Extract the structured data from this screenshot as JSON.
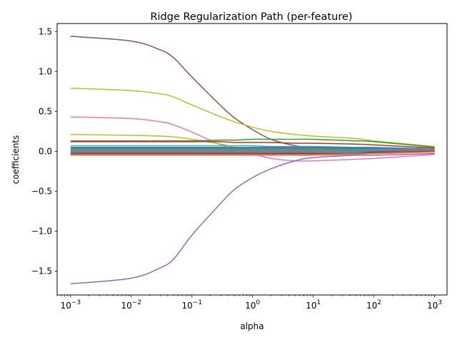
{
  "chart_data": {
    "type": "line",
    "title": "Ridge Regularization Path (per-feature)",
    "xlabel": "alpha",
    "ylabel": "coefficients",
    "xscale": "log",
    "xlim": [
      0.0006,
      1600
    ],
    "ylim": [
      -1.8,
      1.6
    ],
    "x_ticks": [
      {
        "value": 0.001,
        "base": "10",
        "exp": "−3"
      },
      {
        "value": 0.01,
        "base": "10",
        "exp": "−2"
      },
      {
        "value": 0.1,
        "base": "10",
        "exp": "−1"
      },
      {
        "value": 1,
        "base": "10",
        "exp": "0"
      },
      {
        "value": 10,
        "base": "10",
        "exp": "1"
      },
      {
        "value": 100,
        "base": "10",
        "exp": "2"
      },
      {
        "value": 1000,
        "base": "10",
        "exp": "3"
      }
    ],
    "y_ticks": [
      {
        "value": 1.5,
        "label": "1.5"
      },
      {
        "value": 1.0,
        "label": "1.0"
      },
      {
        "value": 0.5,
        "label": "0.5"
      },
      {
        "value": 0.0,
        "label": "0.0"
      },
      {
        "value": -0.5,
        "label": "−0.5"
      },
      {
        "value": -1.0,
        "label": "−1.0"
      },
      {
        "value": -1.5,
        "label": "−1.5"
      }
    ],
    "grid": false,
    "legend": "none",
    "x": [
      0.001,
      0.01,
      0.03,
      0.05,
      0.1,
      0.3,
      0.5,
      1,
      2,
      5,
      10,
      50,
      100,
      1000
    ],
    "series": [
      {
        "color": "#8c564b",
        "values": [
          1.44,
          1.38,
          1.27,
          1.17,
          0.93,
          0.57,
          0.42,
          0.27,
          0.15,
          0.07,
          0.05,
          0.04,
          0.04,
          0.03
        ]
      },
      {
        "color": "#bcbd22",
        "values": [
          0.79,
          0.76,
          0.72,
          0.68,
          0.58,
          0.43,
          0.37,
          0.3,
          0.25,
          0.21,
          0.19,
          0.16,
          0.13,
          0.06
        ]
      },
      {
        "color": "#e377c2",
        "values": [
          0.43,
          0.41,
          0.37,
          0.33,
          0.24,
          0.08,
          0.03,
          -0.03,
          -0.09,
          -0.12,
          -0.12,
          -0.1,
          -0.09,
          -0.04
        ]
      },
      {
        "color": "#bcbd22",
        "values": [
          0.21,
          0.2,
          0.19,
          0.18,
          0.15,
          0.09,
          0.05,
          0.01,
          -0.01,
          -0.02,
          -0.02,
          -0.02,
          -0.01,
          0.0
        ]
      },
      {
        "color": "#2ca02c",
        "values": [
          0.13,
          0.13,
          0.13,
          0.13,
          0.13,
          0.14,
          0.14,
          0.15,
          0.15,
          0.15,
          0.15,
          0.13,
          0.12,
          0.05
        ]
      },
      {
        "color": "#d62728",
        "values": [
          0.12,
          0.12,
          0.12,
          0.12,
          0.12,
          0.12,
          0.11,
          0.11,
          0.11,
          0.1,
          0.1,
          0.09,
          0.08,
          0.04
        ]
      },
      {
        "color": "#17becf",
        "values": [
          0.07,
          0.07,
          0.07,
          0.07,
          0.07,
          0.07,
          0.07,
          0.07,
          0.06,
          0.06,
          0.06,
          0.05,
          0.05,
          0.03
        ]
      },
      {
        "color": "#1f77b4",
        "values": [
          0.05,
          0.05,
          0.05,
          0.05,
          0.05,
          0.05,
          0.05,
          0.05,
          0.05,
          0.05,
          0.05,
          0.04,
          0.04,
          0.02
        ]
      },
      {
        "color": "#9467bd",
        "values": [
          0.04,
          0.04,
          0.04,
          0.04,
          0.04,
          0.04,
          0.04,
          0.04,
          0.04,
          0.04,
          0.04,
          0.03,
          0.03,
          0.02
        ]
      },
      {
        "color": "#2ca02c",
        "values": [
          0.03,
          0.03,
          0.03,
          0.03,
          0.03,
          0.03,
          0.03,
          0.03,
          0.03,
          0.03,
          0.03,
          0.03,
          0.02,
          0.01
        ]
      },
      {
        "color": "#7f7f7f",
        "values": [
          0.02,
          0.02,
          0.02,
          0.02,
          0.02,
          0.02,
          0.02,
          0.02,
          0.02,
          0.02,
          0.02,
          0.02,
          0.02,
          0.01
        ]
      },
      {
        "color": "#17becf",
        "values": [
          0.01,
          0.01,
          0.01,
          0.01,
          0.01,
          0.01,
          0.01,
          0.01,
          0.01,
          0.01,
          0.01,
          0.01,
          0.01,
          0.0
        ]
      },
      {
        "color": "#8c564b",
        "values": [
          0.0,
          0.0,
          0.0,
          0.0,
          0.0,
          0.0,
          0.0,
          0.0,
          0.0,
          0.0,
          0.0,
          0.0,
          0.0,
          0.0
        ]
      },
      {
        "color": "#e377c2",
        "values": [
          -0.01,
          -0.01,
          -0.01,
          -0.01,
          -0.01,
          -0.01,
          -0.01,
          -0.01,
          -0.01,
          -0.01,
          -0.01,
          -0.01,
          -0.01,
          0.0
        ]
      },
      {
        "color": "#1f77b4",
        "values": [
          -0.02,
          -0.02,
          -0.02,
          -0.02,
          -0.02,
          -0.02,
          -0.02,
          -0.02,
          -0.02,
          -0.02,
          -0.02,
          -0.02,
          -0.01,
          0.0
        ]
      },
      {
        "color": "#d62728",
        "values": [
          -0.03,
          -0.03,
          -0.03,
          -0.03,
          -0.03,
          -0.03,
          -0.03,
          -0.03,
          -0.03,
          -0.03,
          -0.03,
          -0.03,
          -0.02,
          0.0
        ]
      },
      {
        "color": "#7f7f7f",
        "values": [
          -0.04,
          -0.04,
          -0.04,
          -0.04,
          -0.04,
          -0.04,
          -0.04,
          -0.04,
          -0.04,
          -0.04,
          -0.04,
          -0.03,
          -0.03,
          -0.01
        ]
      },
      {
        "color": "#ff7f0e",
        "values": [
          -0.05,
          -0.05,
          -0.05,
          -0.05,
          -0.05,
          -0.05,
          -0.05,
          -0.05,
          -0.05,
          -0.05,
          -0.05,
          -0.04,
          -0.03,
          -0.01
        ]
      },
      {
        "color": "#9467bd",
        "values": [
          -1.66,
          -1.59,
          -1.46,
          -1.35,
          -1.05,
          -0.65,
          -0.48,
          -0.33,
          -0.22,
          -0.12,
          -0.08,
          -0.05,
          -0.05,
          -0.03
        ]
      }
    ]
  }
}
